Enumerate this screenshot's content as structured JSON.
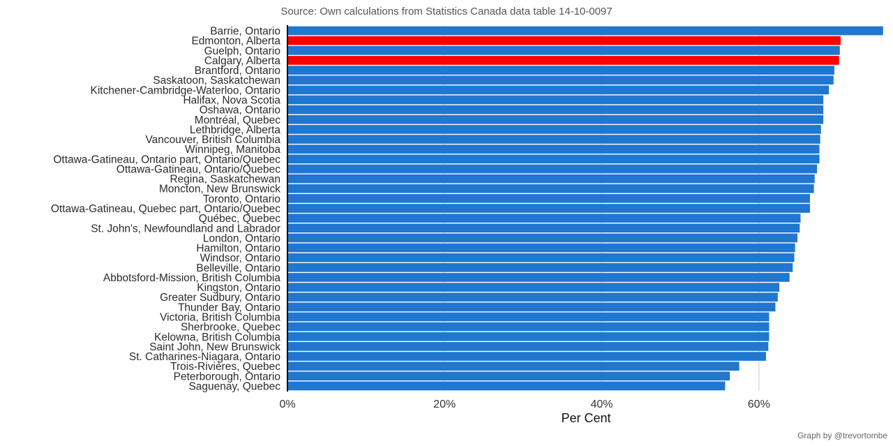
{
  "source_note": "Source: Own calculations from Statistics Canada data table 14-10-0097",
  "credit": "Graph by @trevortombe",
  "colors": {
    "default_bar": "#1f77d0",
    "highlight_bar": "#ff0000",
    "grid": "#e5e5e5",
    "axis": "#000000"
  },
  "chart_data": {
    "type": "bar",
    "orientation": "horizontal",
    "title": "",
    "xlabel": "Per Cent",
    "ylabel": "",
    "xlim": [
      0,
      76
    ],
    "x_ticks": [
      0,
      20,
      40,
      60
    ],
    "x_tick_labels": [
      "0%",
      "20%",
      "40%",
      "60%"
    ],
    "grid": true,
    "categories": [
      "Barrie, Ontario",
      "Edmonton, Alberta",
      "Guelph, Ontario",
      "Calgary, Alberta",
      "Brantford, Ontario",
      "Saskatoon, Saskatchewan",
      "Kitchener-Cambridge-Waterloo, Ontario",
      "Halifax, Nova Scotia",
      "Oshawa, Ontario",
      "Montréal, Quebec",
      "Lethbridge, Alberta",
      "Vancouver, British Columbia",
      "Winnipeg, Manitoba",
      "Ottawa-Gatineau, Ontario part, Ontario/Quebec",
      "Ottawa-Gatineau, Ontario/Quebec",
      "Regina, Saskatchewan",
      "Moncton, New Brunswick",
      "Toronto, Ontario",
      "Ottawa-Gatineau, Quebec part, Ontario/Quebec",
      "Québec, Quebec",
      "St. John's, Newfoundland and Labrador",
      "London, Ontario",
      "Hamilton, Ontario",
      "Windsor, Ontario",
      "Belleville, Ontario",
      "Abbotsford-Mission, British Columbia",
      "Kingston, Ontario",
      "Greater Sudbury, Ontario",
      "Thunder Bay, Ontario",
      "Victoria, British Columbia",
      "Sherbrooke, Quebec",
      "Kelowna, British Columbia",
      "Saint John, New Brunswick",
      "St. Catharines-Niagara, Ontario",
      "Trois-Rivières, Quebec",
      "Peterborough, Ontario",
      "Saguenay, Quebec"
    ],
    "values": [
      75.8,
      70.4,
      70.3,
      70.2,
      69.6,
      69.5,
      68.9,
      68.2,
      68.2,
      68.2,
      67.9,
      67.8,
      67.7,
      67.7,
      67.4,
      67.1,
      67.0,
      66.5,
      66.5,
      65.3,
      65.2,
      64.9,
      64.6,
      64.5,
      64.3,
      63.9,
      62.6,
      62.4,
      62.1,
      61.3,
      61.3,
      61.3,
      61.2,
      60.9,
      57.5,
      56.3,
      55.7
    ],
    "highlight": [
      "Edmonton, Alberta",
      "Calgary, Alberta"
    ]
  }
}
